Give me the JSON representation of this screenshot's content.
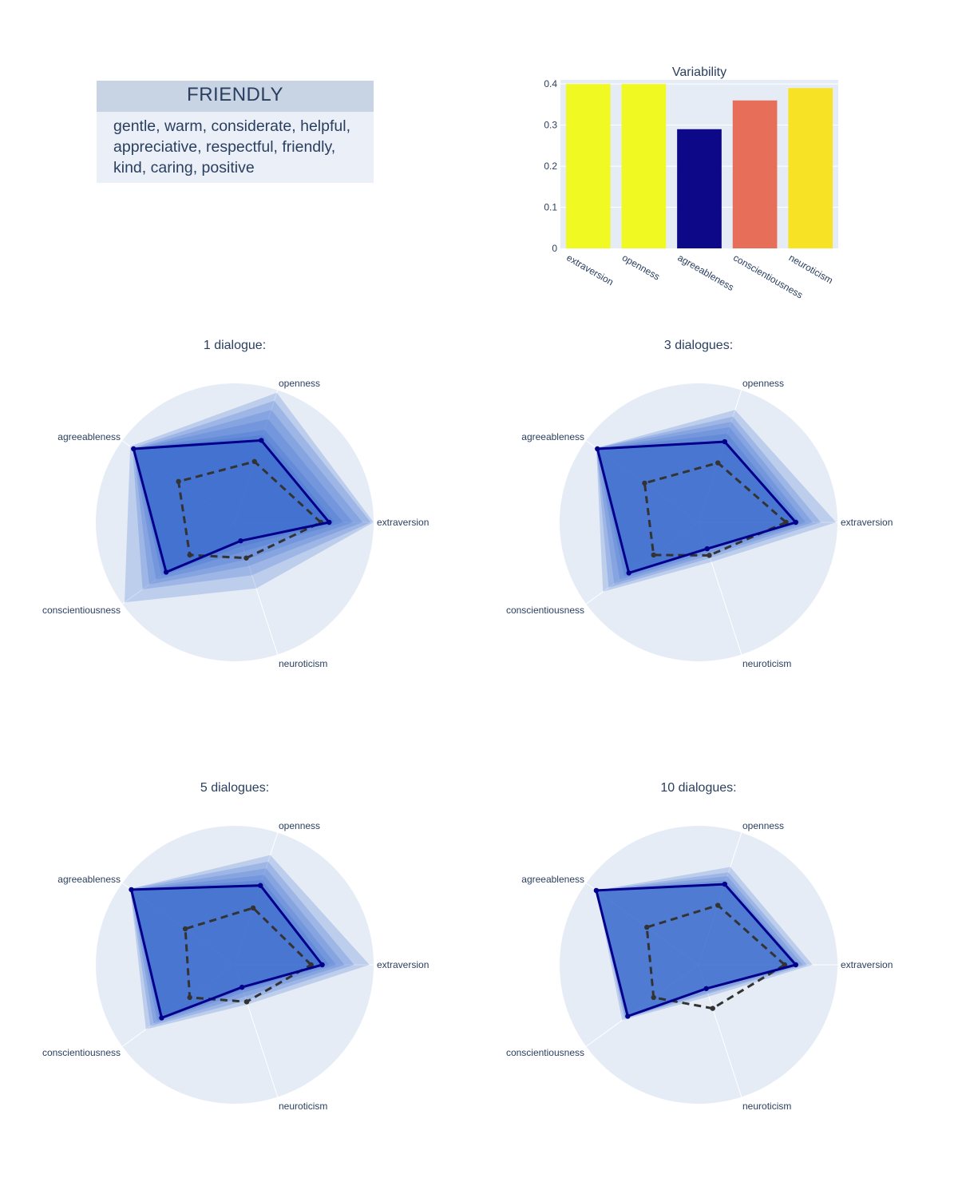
{
  "card": {
    "title": "FRIENDLY",
    "lines": [
      "gentle, warm, considerate, helpful,",
      "appreciative, respectful, friendly,",
      "kind, caring, positive"
    ]
  },
  "colors": {
    "page_bg": "#ffffff",
    "plot_bg": "#e5ecf6",
    "grid": "#ffffff",
    "card_header": "#c8d4e3",
    "card_body": "#ebf0f8",
    "text": "#2a3f5f",
    "fill": "#3366cc",
    "final_line": "#00008b",
    "dashed_line": "#333333"
  },
  "chart_data": [
    {
      "type": "bar",
      "title": "Variability",
      "categories": [
        "extraversion",
        "openness",
        "agreeableness",
        "conscientiousness",
        "neuroticism"
      ],
      "values": [
        0.4,
        0.4,
        0.29,
        0.36,
        0.39
      ],
      "bar_colors": [
        "#f0f921",
        "#f0f921",
        "#0d0887",
        "#e76f5a",
        "#f7e225"
      ],
      "ylim": [
        0,
        0.41
      ],
      "yticks": [
        0,
        0.1,
        0.2,
        0.3,
        0.4
      ],
      "ytick_labels": [
        "0",
        "0.1",
        "0.2",
        "0.3",
        "0.4"
      ]
    },
    {
      "type": "radar",
      "title": "1 dialogue:",
      "axes": [
        "extraversion",
        "openness",
        "agreeableness",
        "conscientiousness",
        "neuroticism"
      ],
      "range": [
        0,
        1
      ],
      "final": [
        0.68,
        0.62,
        0.9,
        0.61,
        0.14
      ],
      "reference": [
        0.62,
        0.46,
        0.5,
        0.4,
        0.27
      ],
      "envelopes": [
        [
          1.0,
          0.98,
          0.93,
          0.98,
          0.5
        ],
        [
          0.98,
          0.92,
          0.91,
          0.82,
          0.4
        ],
        [
          0.92,
          0.85,
          0.9,
          0.76,
          0.33
        ],
        [
          0.85,
          0.78,
          0.9,
          0.7,
          0.28
        ],
        [
          0.78,
          0.7,
          0.9,
          0.65,
          0.22
        ],
        [
          0.72,
          0.66,
          0.9,
          0.63,
          0.18
        ]
      ]
    },
    {
      "type": "radar",
      "title": "3 dialogues:",
      "axes": [
        "extraversion",
        "openness",
        "agreeableness",
        "conscientiousness",
        "neuroticism"
      ],
      "range": [
        0,
        1
      ],
      "final": [
        0.7,
        0.61,
        0.9,
        0.62,
        0.2
      ],
      "reference": [
        0.63,
        0.45,
        0.48,
        0.4,
        0.25
      ],
      "envelopes": [
        [
          0.99,
          0.85,
          0.91,
          0.85,
          0.3
        ],
        [
          0.88,
          0.8,
          0.91,
          0.8,
          0.27
        ],
        [
          0.82,
          0.76,
          0.91,
          0.75,
          0.25
        ],
        [
          0.77,
          0.72,
          0.9,
          0.7,
          0.23
        ],
        [
          0.73,
          0.67,
          0.9,
          0.66,
          0.21
        ]
      ]
    },
    {
      "type": "radar",
      "title": "5 dialogues:",
      "axes": [
        "extraversion",
        "openness",
        "agreeableness",
        "conscientiousness",
        "neuroticism"
      ],
      "range": [
        0,
        1
      ],
      "final": [
        0.63,
        0.6,
        0.92,
        0.65,
        0.17
      ],
      "reference": [
        0.55,
        0.43,
        0.44,
        0.4,
        0.28
      ],
      "envelopes": [
        [
          0.97,
          0.83,
          0.93,
          0.79,
          0.3
        ],
        [
          0.86,
          0.78,
          0.93,
          0.75,
          0.27
        ],
        [
          0.79,
          0.73,
          0.92,
          0.72,
          0.24
        ],
        [
          0.73,
          0.68,
          0.92,
          0.69,
          0.21
        ],
        [
          0.68,
          0.64,
          0.92,
          0.67,
          0.19
        ]
      ]
    },
    {
      "type": "radar",
      "title": "10 dialogues:",
      "axes": [
        "extraversion",
        "openness",
        "agreeableness",
        "conscientiousness",
        "neuroticism"
      ],
      "range": [
        0,
        1
      ],
      "final": [
        0.7,
        0.61,
        0.91,
        0.63,
        0.18
      ],
      "reference": [
        0.62,
        0.45,
        0.46,
        0.4,
        0.33
      ],
      "envelopes": [
        [
          0.82,
          0.74,
          0.91,
          0.68,
          0.24
        ],
        [
          0.78,
          0.7,
          0.91,
          0.66,
          0.22
        ],
        [
          0.75,
          0.67,
          0.91,
          0.65,
          0.21
        ],
        [
          0.72,
          0.64,
          0.91,
          0.64,
          0.19
        ]
      ]
    }
  ]
}
